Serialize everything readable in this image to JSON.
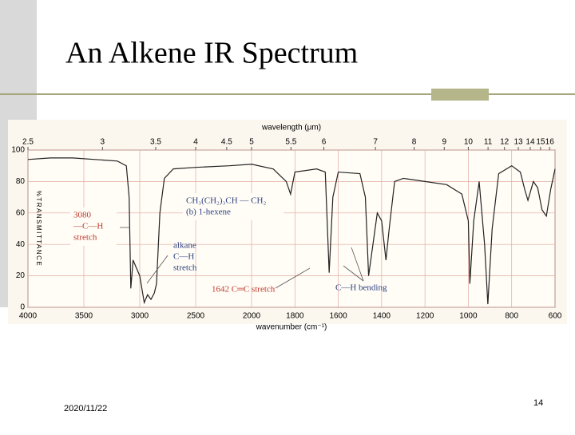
{
  "slide": {
    "title": "An Alkene IR Spectrum",
    "date": "2020/11/22",
    "page": "14"
  },
  "chart_data": {
    "type": "line",
    "xlabel": "wavenumber (cm⁻¹)",
    "x2label": "wavelength (μm)",
    "ylabel": "%TRANSMITTANCE",
    "xlim": [
      4000,
      600
    ],
    "x_scale_break": 2000,
    "xticks": [
      4000,
      3500,
      3000,
      2500,
      2000,
      1800,
      1600,
      1400,
      1200,
      1000,
      800,
      600
    ],
    "x2ticks": [
      2.5,
      3,
      3.5,
      4,
      4.5,
      5,
      5.5,
      6,
      7,
      8,
      9,
      10,
      11,
      12,
      13,
      14,
      15,
      16
    ],
    "ylim": [
      0,
      100
    ],
    "yticks": [
      0,
      20,
      40,
      60,
      80,
      100
    ],
    "grid": true,
    "color": "#222222",
    "x": [
      4000,
      3800,
      3600,
      3400,
      3200,
      3120,
      3095,
      3080,
      3060,
      3000,
      2960,
      2930,
      2900,
      2870,
      2850,
      2820,
      2780,
      2700,
      2500,
      2200,
      2000,
      1900,
      1840,
      1820,
      1800,
      1700,
      1660,
      1642,
      1625,
      1600,
      1500,
      1475,
      1460,
      1445,
      1420,
      1400,
      1380,
      1365,
      1340,
      1300,
      1200,
      1100,
      1030,
      1000,
      993,
      975,
      950,
      925,
      910,
      890,
      860,
      800,
      760,
      740,
      725,
      700,
      680,
      660,
      640,
      620,
      600
    ],
    "values": [
      94,
      95,
      95,
      94,
      93,
      90,
      70,
      12,
      30,
      20,
      3,
      8,
      5,
      9,
      15,
      60,
      82,
      88,
      89,
      90,
      91,
      88,
      80,
      72,
      86,
      88,
      86,
      22,
      70,
      86,
      85,
      70,
      20,
      35,
      60,
      55,
      30,
      50,
      80,
      82,
      80,
      78,
      72,
      55,
      15,
      55,
      80,
      40,
      2,
      50,
      85,
      90,
      86,
      75,
      68,
      80,
      76,
      62,
      58,
      75,
      88
    ],
    "annotations": [
      {
        "lines": [
          "3080",
          "—C—H",
          "stretch"
        ],
        "color": "#c0392b"
      },
      {
        "lines": [
          "alkane",
          "C—H",
          "stretch"
        ],
        "color": "#2c3e80"
      },
      {
        "lines": [
          "CH₃(CH₂)₃CH — CH₂",
          "(b) 1-hexene"
        ],
        "color": "#2c3e80"
      },
      {
        "lines": [
          "1642 C═C stretch"
        ],
        "color": "#c0392b"
      },
      {
        "lines": [
          "C—H  bending"
        ],
        "color": "#2c3e80"
      }
    ]
  }
}
